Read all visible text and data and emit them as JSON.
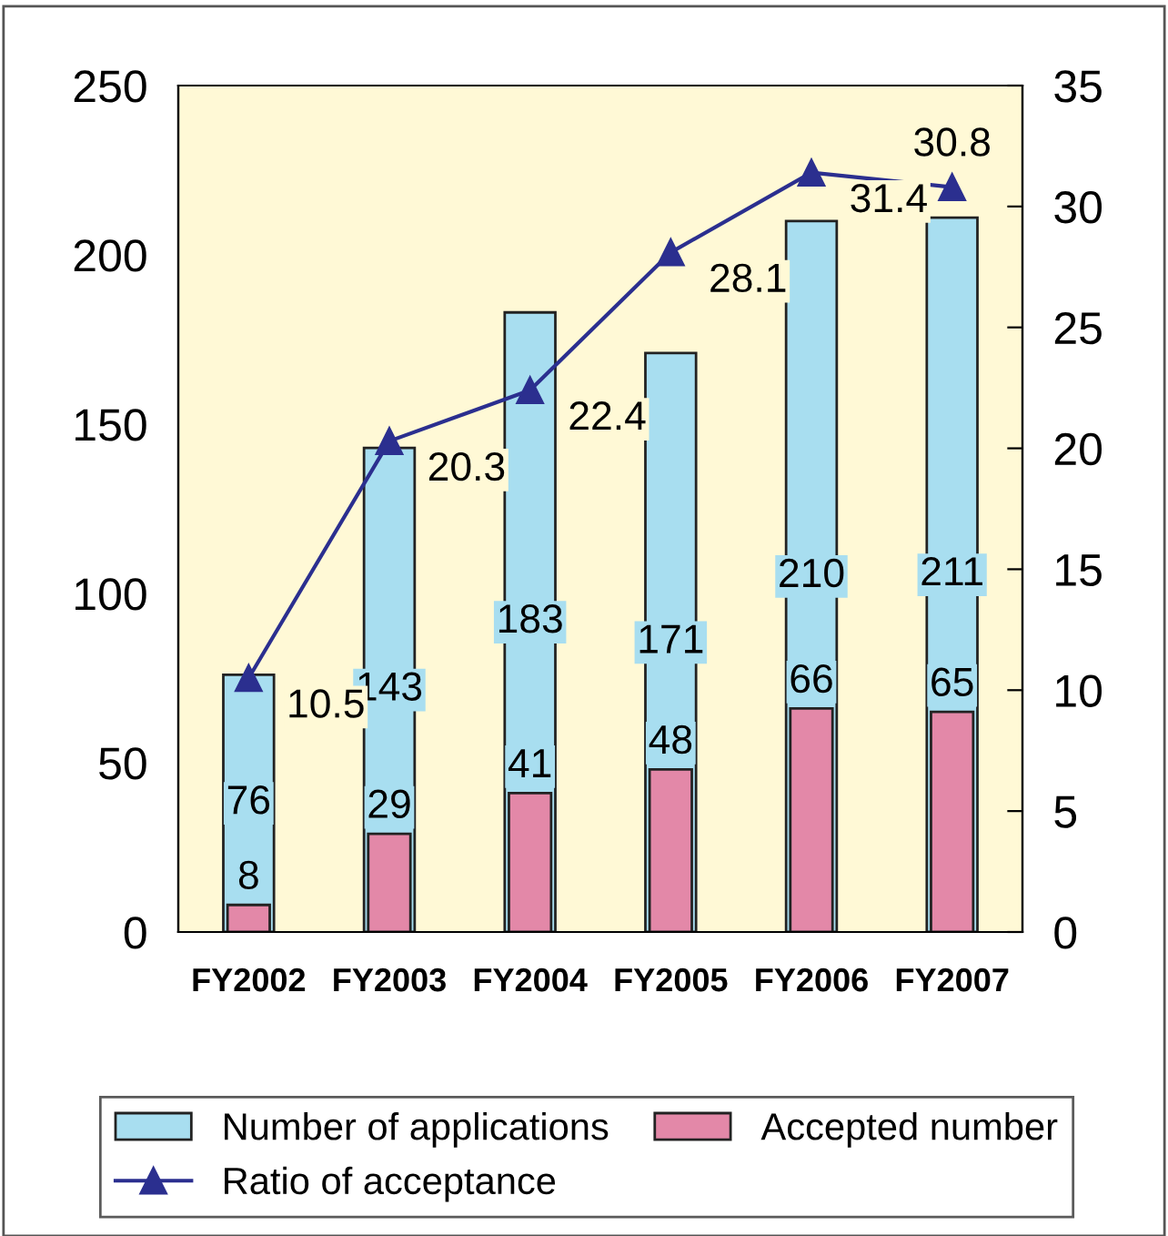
{
  "chart_data": {
    "type": "bar",
    "categories": [
      "FY2002",
      "FY2003",
      "FY2004",
      "FY2005",
      "FY2006",
      "FY2007"
    ],
    "series": [
      {
        "name": "Number of applications",
        "color": "#a8def0",
        "values": [
          76,
          143,
          183,
          171,
          210,
          211
        ]
      },
      {
        "name": "Accepted number",
        "color": "#e388a8",
        "values": [
          8,
          29,
          41,
          48,
          66,
          65
        ]
      },
      {
        "name": "Ratio of acceptance",
        "type": "line",
        "axis": "y2",
        "color": "#2b2f8f",
        "marker": "triangle",
        "values": [
          10.5,
          20.3,
          22.4,
          28.1,
          31.4,
          30.8
        ]
      }
    ],
    "ylim": [
      0,
      250
    ],
    "yticks": [
      0,
      50,
      100,
      150,
      200,
      250
    ],
    "y2lim": [
      0,
      35
    ],
    "y2ticks": [
      0,
      5,
      10,
      15,
      20,
      25,
      30,
      35
    ],
    "data_labels": true,
    "grid": false,
    "legend": "bottom"
  }
}
